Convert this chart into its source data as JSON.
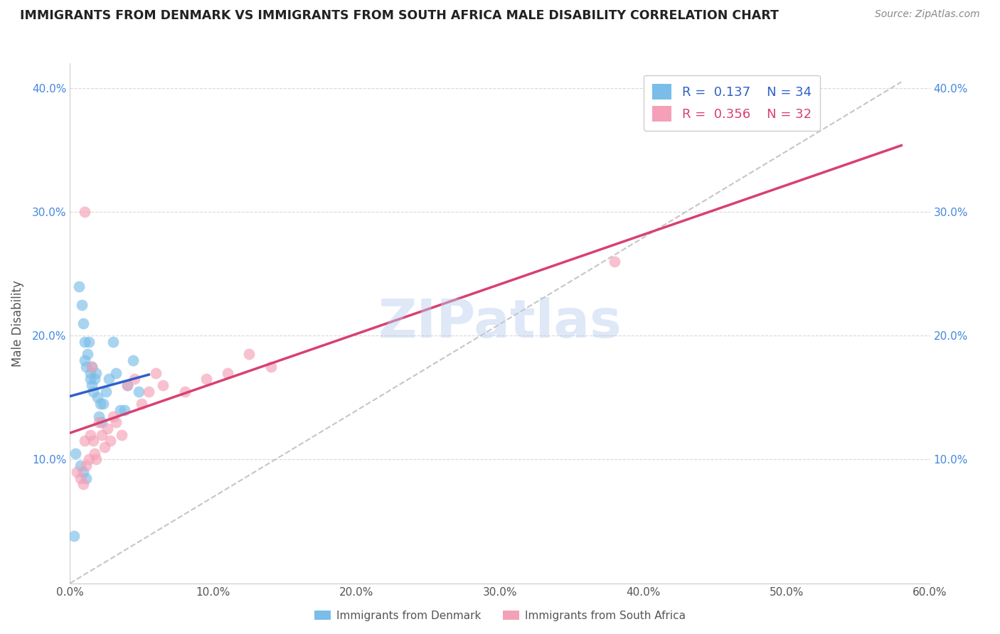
{
  "title": "IMMIGRANTS FROM DENMARK VS IMMIGRANTS FROM SOUTH AFRICA MALE DISABILITY CORRELATION CHART",
  "source": "Source: ZipAtlas.com",
  "ylabel": "Male Disability",
  "xlim": [
    0.0,
    0.6
  ],
  "ylim": [
    0.0,
    0.42
  ],
  "xticks": [
    0.0,
    0.1,
    0.2,
    0.3,
    0.4,
    0.5,
    0.6
  ],
  "yticks": [
    0.0,
    0.1,
    0.2,
    0.3,
    0.4
  ],
  "xticklabels": [
    "0.0%",
    "10.0%",
    "20.0%",
    "30.0%",
    "40.0%",
    "50.0%",
    "60.0%"
  ],
  "yticklabels_left": [
    "",
    "10.0%",
    "20.0%",
    "30.0%",
    "40.0%"
  ],
  "yticklabels_right": [
    "",
    "10.0%",
    "20.0%",
    "30.0%",
    "40.0%"
  ],
  "legend_r1": "R =  0.137",
  "legend_n1": "N = 34",
  "legend_r2": "R =  0.356",
  "legend_n2": "N = 32",
  "color_denmark": "#7abde8",
  "color_south_africa": "#f4a0b8",
  "color_denmark_line": "#3060c8",
  "color_south_africa_line": "#d84070",
  "color_dashed": "#b8b8b8",
  "denmark_x": [
    0.003,
    0.006,
    0.008,
    0.009,
    0.01,
    0.01,
    0.011,
    0.012,
    0.013,
    0.014,
    0.014,
    0.015,
    0.015,
    0.016,
    0.017,
    0.018,
    0.019,
    0.02,
    0.021,
    0.022,
    0.023,
    0.025,
    0.027,
    0.03,
    0.032,
    0.035,
    0.038,
    0.04,
    0.044,
    0.048,
    0.004,
    0.007,
    0.009,
    0.011
  ],
  "denmark_y": [
    0.038,
    0.24,
    0.225,
    0.21,
    0.195,
    0.18,
    0.175,
    0.185,
    0.195,
    0.165,
    0.17,
    0.175,
    0.16,
    0.155,
    0.165,
    0.17,
    0.15,
    0.135,
    0.145,
    0.13,
    0.145,
    0.155,
    0.165,
    0.195,
    0.17,
    0.14,
    0.14,
    0.16,
    0.18,
    0.155,
    0.105,
    0.095,
    0.09,
    0.085
  ],
  "south_africa_x": [
    0.005,
    0.007,
    0.009,
    0.01,
    0.011,
    0.013,
    0.014,
    0.016,
    0.017,
    0.018,
    0.02,
    0.022,
    0.024,
    0.026,
    0.028,
    0.03,
    0.032,
    0.036,
    0.04,
    0.045,
    0.05,
    0.055,
    0.06,
    0.065,
    0.08,
    0.095,
    0.11,
    0.125,
    0.14,
    0.38,
    0.01,
    0.015
  ],
  "south_africa_y": [
    0.09,
    0.085,
    0.08,
    0.115,
    0.095,
    0.1,
    0.12,
    0.115,
    0.105,
    0.1,
    0.13,
    0.12,
    0.11,
    0.125,
    0.115,
    0.135,
    0.13,
    0.12,
    0.16,
    0.165,
    0.145,
    0.155,
    0.17,
    0.16,
    0.155,
    0.165,
    0.17,
    0.185,
    0.175,
    0.26,
    0.3,
    0.175
  ],
  "watermark": "ZIPatlas",
  "background_color": "#ffffff",
  "grid_color": "#d8d8d8"
}
